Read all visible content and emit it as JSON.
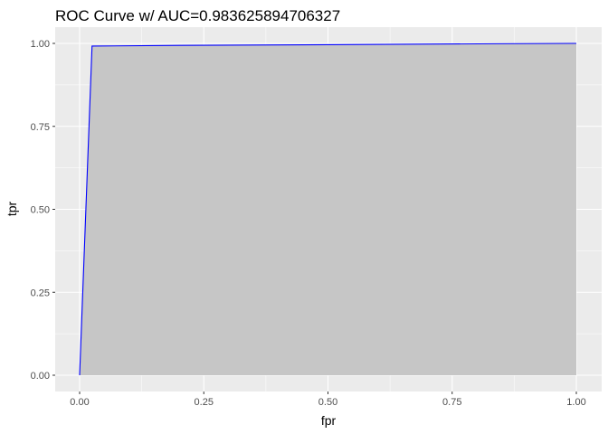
{
  "chart_data": {
    "type": "area",
    "title": "ROC Curve w/ AUC=0.983625894706327",
    "xlabel": "fpr",
    "ylabel": "tpr",
    "xlim": [
      0,
      1
    ],
    "ylim": [
      0,
      1
    ],
    "xticks": [
      0,
      0.25,
      0.5,
      0.75,
      1
    ],
    "xtick_labels": [
      "0.00",
      "0.25",
      "0.50",
      "0.75",
      "1.00"
    ],
    "yticks": [
      0,
      0.25,
      0.5,
      0.75,
      1
    ],
    "ytick_labels": [
      "0.00",
      "0.25",
      "0.50",
      "0.75",
      "1.00"
    ],
    "grid": true,
    "legend": "none",
    "colors": {
      "panel": "#ebebeb",
      "grid": "#ffffff",
      "area": "#c6c6c6",
      "line": "#0000ff"
    },
    "series": [
      {
        "x": [
          0,
          0.025,
          0.2,
          0.5,
          0.84,
          1
        ],
        "y": [
          0,
          0.992,
          0.994,
          0.996,
          0.999,
          1
        ]
      }
    ]
  }
}
